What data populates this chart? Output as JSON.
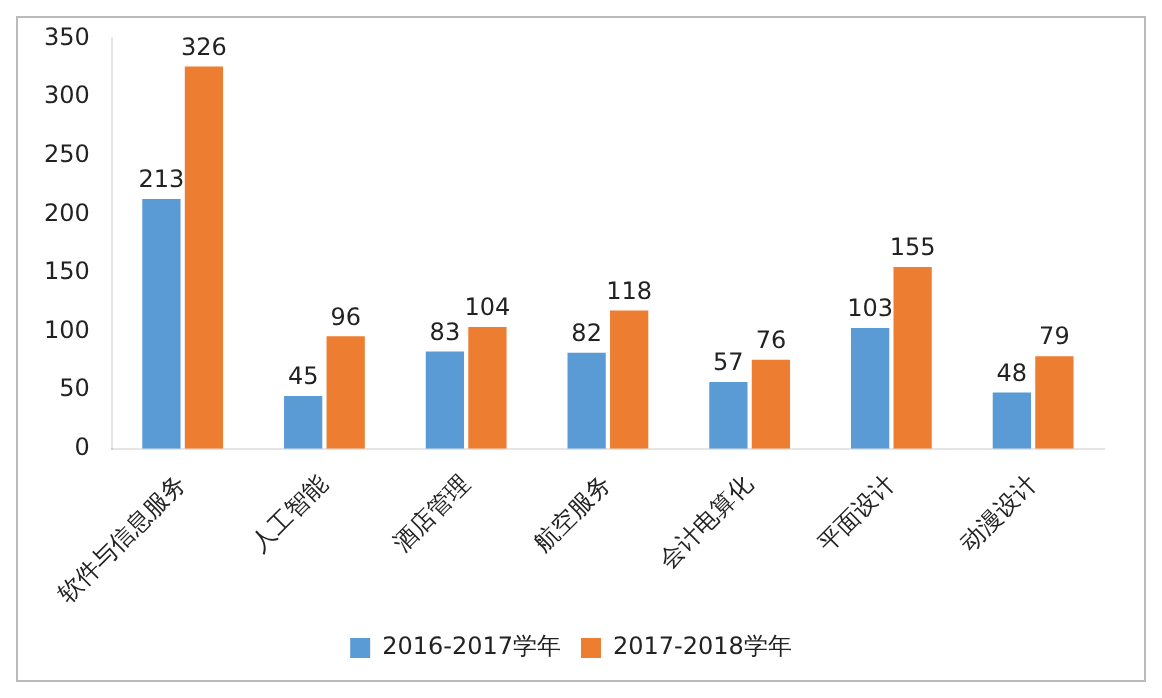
{
  "chart_data": {
    "type": "bar",
    "categories": [
      "软件与信息服务",
      "人工智能",
      "酒店管理",
      "航空服务",
      "会计电算化",
      "平面设计",
      "动漫设计"
    ],
    "series": [
      {
        "name": "2016-2017学年",
        "color": "#5b9bd5",
        "values": [
          213,
          45,
          83,
          82,
          57,
          103,
          48
        ]
      },
      {
        "name": "2017-2018学年",
        "color": "#ed7d31",
        "values": [
          326,
          96,
          104,
          118,
          76,
          155,
          79
        ]
      }
    ],
    "ylim": [
      0,
      350
    ],
    "yticks": [
      0,
      50,
      100,
      150,
      200,
      250,
      300,
      350
    ],
    "grid": false,
    "legend": "bottom",
    "data_labels": true
  }
}
